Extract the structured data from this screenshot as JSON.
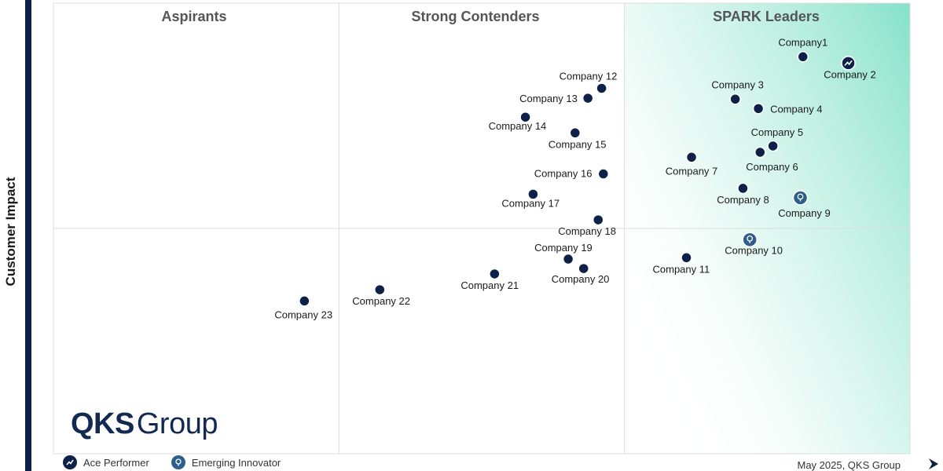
{
  "chart_data": {
    "type": "scatter",
    "ylabel": "Customer Impact",
    "quadrants": [
      "Aspirants",
      "Strong Contenders",
      "SPARK Leaders"
    ],
    "xlim": [
      0,
      100
    ],
    "ylim": [
      0,
      100
    ],
    "points": [
      {
        "label": "Company1",
        "x": 87.5,
        "y": 88.1,
        "type": "normal"
      },
      {
        "label": "Company 2",
        "x": 92.8,
        "y": 86.7,
        "type": "ace"
      },
      {
        "label": "Company 3",
        "x": 79.6,
        "y": 78.7,
        "type": "normal"
      },
      {
        "label": "Company 4",
        "x": 82.3,
        "y": 76.6,
        "type": "normal"
      },
      {
        "label": "Company 5",
        "x": 84.0,
        "y": 68.3,
        "type": "normal"
      },
      {
        "label": "Company 6",
        "x": 82.5,
        "y": 66.9,
        "type": "normal"
      },
      {
        "label": "Company 7",
        "x": 74.5,
        "y": 65.8,
        "type": "normal"
      },
      {
        "label": "Company 8",
        "x": 80.5,
        "y": 58.9,
        "type": "normal"
      },
      {
        "label": "Company 9",
        "x": 87.2,
        "y": 56.8,
        "type": "emerging"
      },
      {
        "label": "Company 10",
        "x": 81.3,
        "y": 47.5,
        "type": "emerging"
      },
      {
        "label": "Company 11",
        "x": 73.9,
        "y": 43.5,
        "type": "normal"
      },
      {
        "label": "Company 12",
        "x": 64.0,
        "y": 81.1,
        "type": "normal"
      },
      {
        "label": "Company 13",
        "x": 62.4,
        "y": 78.9,
        "type": "normal"
      },
      {
        "label": "Company 14",
        "x": 55.1,
        "y": 74.7,
        "type": "normal"
      },
      {
        "label": "Company 15",
        "x": 60.9,
        "y": 71.2,
        "type": "normal"
      },
      {
        "label": "Company 16",
        "x": 64.2,
        "y": 62.1,
        "type": "normal"
      },
      {
        "label": "Company 17",
        "x": 56.0,
        "y": 57.6,
        "type": "normal"
      },
      {
        "label": "Company 18",
        "x": 63.6,
        "y": 51.9,
        "type": "normal"
      },
      {
        "label": "Company 19",
        "x": 60.1,
        "y": 43.2,
        "type": "normal"
      },
      {
        "label": "Company 20",
        "x": 61.9,
        "y": 41.1,
        "type": "normal"
      },
      {
        "label": "Company 21",
        "x": 51.5,
        "y": 39.9,
        "type": "normal"
      },
      {
        "label": "Company 22",
        "x": 38.1,
        "y": 36.4,
        "type": "normal"
      },
      {
        "label": "Company 23",
        "x": 29.3,
        "y": 33.9,
        "type": "normal"
      }
    ]
  },
  "logo": {
    "strong": "QKS",
    "light": "Group"
  },
  "legend": [
    {
      "label": "Ace Performer",
      "icon": "ace-performer-icon"
    },
    {
      "label": "Emerging Innovator",
      "icon": "emerging-innovator-icon"
    }
  ],
  "footer": "May 2025, QKS Group",
  "colors": {
    "dot": "#0d2148",
    "emerging": "#2e5e8a",
    "leader_gradient": "#7fe0c6",
    "title": "#555555"
  }
}
